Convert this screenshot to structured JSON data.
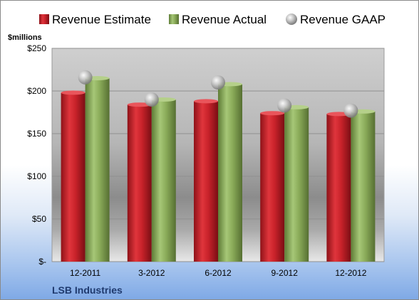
{
  "chart_data": {
    "type": "bar",
    "categories": [
      "12-2011",
      "3-2012",
      "6-2012",
      "9-2012",
      "12-2012"
    ],
    "series": [
      {
        "name": "Revenue Estimate",
        "values": [
          198,
          184,
          188,
          174,
          173
        ],
        "color": "#c0232b"
      },
      {
        "name": "Revenue Actual",
        "values": [
          215,
          190,
          208,
          181,
          176
        ],
        "color": "#8db05c"
      },
      {
        "name": "Revenue GAAP",
        "values": [
          216,
          190,
          210,
          183,
          177
        ],
        "color": "#b8b8b8",
        "marker": "sphere"
      }
    ],
    "ylabel": "$millions",
    "ylim": [
      0,
      250
    ],
    "yticks": [
      0,
      50,
      100,
      150,
      200,
      250
    ],
    "ytick_labels": [
      "$-",
      "$50",
      "$100",
      "$150",
      "$200",
      "$250"
    ],
    "grid": true,
    "legend_position": "top",
    "footer": "LSB Industries"
  }
}
